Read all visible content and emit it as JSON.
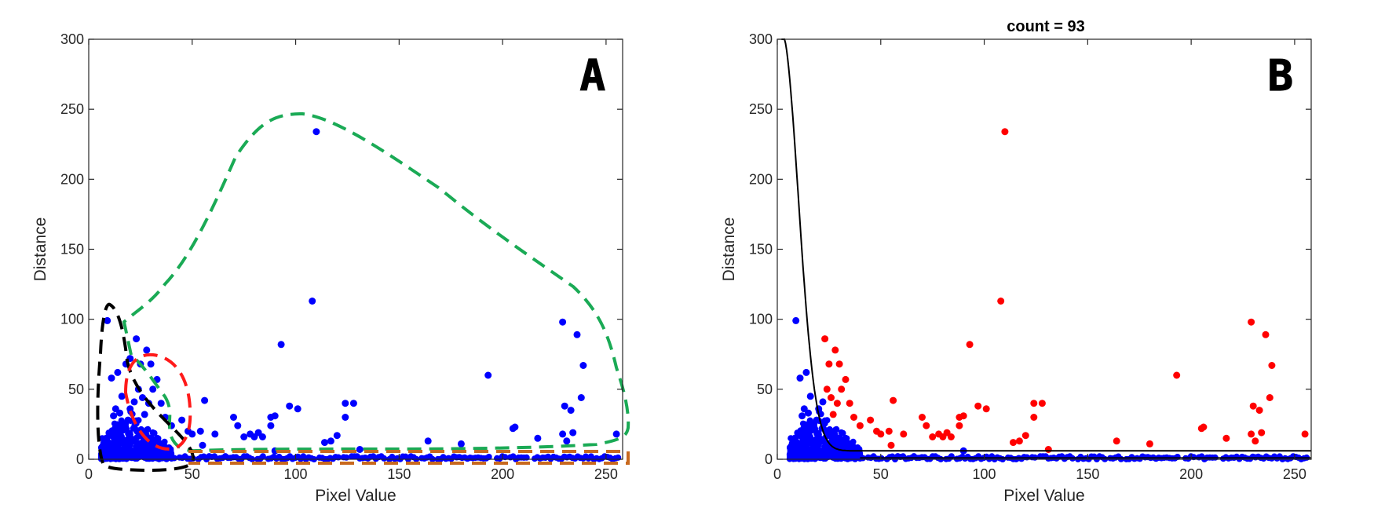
{
  "chart_data": [
    {
      "type": "scatter",
      "panel_label": "A",
      "title": "",
      "xlabel": "Pixel Value",
      "ylabel": "Distance",
      "xlim": [
        0,
        258
      ],
      "ylim": [
        0,
        300
      ],
      "xticks": [
        0,
        50,
        100,
        150,
        200,
        250
      ],
      "yticks": [
        0,
        50,
        100,
        150,
        200,
        250,
        300
      ],
      "grid": false,
      "colors": {
        "points": "#0000ff"
      },
      "series": [
        {
          "color": "#0000ff",
          "points": [
            [
              9,
              99
            ],
            [
              11,
              58
            ],
            [
              14,
              62
            ],
            [
              18,
              68
            ],
            [
              20,
              72
            ],
            [
              23,
              86
            ],
            [
              25,
              68
            ],
            [
              28,
              78
            ],
            [
              30,
              68
            ],
            [
              31,
              50
            ],
            [
              33,
              57
            ],
            [
              29,
              40
            ],
            [
              35,
              40
            ],
            [
              37,
              30
            ],
            [
              40,
              24
            ],
            [
              24,
              50
            ],
            [
              26,
              44
            ],
            [
              22,
              41
            ],
            [
              16,
              45
            ],
            [
              13,
              36
            ],
            [
              12,
              31
            ],
            [
              15,
              33
            ],
            [
              20,
              36
            ],
            [
              19,
              28
            ],
            [
              27,
              32
            ],
            [
              45,
              28
            ],
            [
              48,
              20
            ],
            [
              50,
              18
            ],
            [
              54,
              20
            ],
            [
              56,
              42
            ],
            [
              55,
              10
            ],
            [
              61,
              18
            ],
            [
              70,
              30
            ],
            [
              72,
              24
            ],
            [
              75,
              16
            ],
            [
              78,
              18
            ],
            [
              80,
              16
            ],
            [
              82,
              19
            ],
            [
              84,
              16
            ],
            [
              88,
              24
            ],
            [
              88,
              30
            ],
            [
              90,
              31
            ],
            [
              90,
              6
            ],
            [
              93,
              82
            ],
            [
              97,
              38
            ],
            [
              101,
              36
            ],
            [
              108,
              113
            ],
            [
              110,
              234
            ],
            [
              114,
              12
            ],
            [
              117,
              13
            ],
            [
              120,
              17
            ],
            [
              124,
              30
            ],
            [
              124,
              40
            ],
            [
              128,
              40
            ],
            [
              131,
              7
            ],
            [
              164,
              13
            ],
            [
              180,
              11
            ],
            [
              193,
              60
            ],
            [
              205,
              22
            ],
            [
              206,
              23
            ],
            [
              217,
              15
            ],
            [
              229,
              98
            ],
            [
              230,
              38
            ],
            [
              229,
              18
            ],
            [
              231,
              13
            ],
            [
              233,
              35
            ],
            [
              234,
              19
            ],
            [
              236,
              89
            ],
            [
              238,
              44
            ],
            [
              239,
              67
            ],
            [
              255,
              18
            ]
          ]
        }
      ]
    },
    {
      "type": "scatter",
      "panel_label": "B",
      "title": "count = 93",
      "xlabel": "Pixel Value",
      "ylabel": "Distance",
      "xlim": [
        0,
        258
      ],
      "ylim": [
        0,
        300
      ],
      "xticks": [
        0,
        50,
        100,
        150,
        200,
        250
      ],
      "yticks": [
        0,
        50,
        100,
        150,
        200,
        250,
        300
      ],
      "grid": false,
      "colors": {
        "inliers": "#0000ff",
        "outliers": "#ff0000",
        "curve": "#000000"
      },
      "series": [
        {
          "color": "#0000ff",
          "points": [
            [
              9,
              99
            ],
            [
              11,
              58
            ],
            [
              14,
              62
            ],
            [
              13,
              36
            ],
            [
              12,
              31
            ],
            [
              15,
              33
            ],
            [
              16,
              45
            ],
            [
              19,
              28
            ],
            [
              20,
              36
            ],
            [
              22,
              41
            ],
            [
              90,
              6
            ]
          ]
        },
        {
          "color": "#ff0000",
          "points": [
            [
              23,
              86
            ],
            [
              25,
              68
            ],
            [
              28,
              78
            ],
            [
              30,
              68
            ],
            [
              31,
              50
            ],
            [
              33,
              57
            ],
            [
              29,
              40
            ],
            [
              35,
              40
            ],
            [
              37,
              30
            ],
            [
              40,
              24
            ],
            [
              24,
              50
            ],
            [
              26,
              44
            ],
            [
              27,
              32
            ],
            [
              45,
              28
            ],
            [
              48,
              20
            ],
            [
              50,
              18
            ],
            [
              54,
              20
            ],
            [
              56,
              42
            ],
            [
              55,
              10
            ],
            [
              61,
              18
            ],
            [
              70,
              30
            ],
            [
              72,
              24
            ],
            [
              75,
              16
            ],
            [
              78,
              18
            ],
            [
              80,
              16
            ],
            [
              82,
              19
            ],
            [
              84,
              16
            ],
            [
              88,
              24
            ],
            [
              88,
              30
            ],
            [
              90,
              31
            ],
            [
              93,
              82
            ],
            [
              97,
              38
            ],
            [
              101,
              36
            ],
            [
              108,
              113
            ],
            [
              110,
              234
            ],
            [
              114,
              12
            ],
            [
              117,
              13
            ],
            [
              120,
              17
            ],
            [
              124,
              30
            ],
            [
              124,
              40
            ],
            [
              128,
              40
            ],
            [
              131,
              7
            ],
            [
              164,
              13
            ],
            [
              180,
              11
            ],
            [
              193,
              60
            ],
            [
              205,
              22
            ],
            [
              206,
              23
            ],
            [
              217,
              15
            ],
            [
              229,
              98
            ],
            [
              230,
              38
            ],
            [
              229,
              18
            ],
            [
              231,
              13
            ],
            [
              233,
              35
            ],
            [
              234,
              19
            ],
            [
              236,
              89
            ],
            [
              238,
              44
            ],
            [
              239,
              67
            ],
            [
              255,
              18
            ]
          ]
        }
      ]
    }
  ]
}
